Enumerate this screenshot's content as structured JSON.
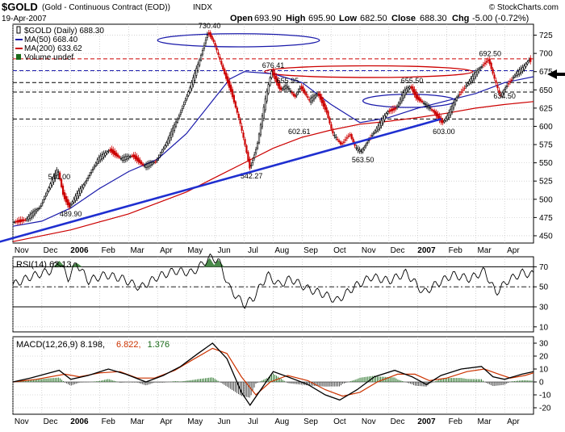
{
  "header": {
    "symbol": "$GOLD",
    "description": "(Gold - Continuous Contract (EOD))",
    "exchange": "INDX",
    "date": "19-Apr-2007",
    "copyright": "© StockCharts.com",
    "ohlc": {
      "open_label": "Open",
      "open": "693.90",
      "high_label": "High",
      "high": "695.90",
      "low_label": "Low",
      "low": "682.50",
      "close_label": "Close",
      "close": "688.30",
      "chg_label": "Chg",
      "chg": "-5.00 (-0.72%)"
    }
  },
  "colors": {
    "price_up": "#000000",
    "price_down": "#cc0000",
    "ma50": "#1a1aaa",
    "ma200": "#cc0000",
    "trendline": "#1f2fd0",
    "grid": "#b8b8b8",
    "macd_line": "#000000",
    "signal_line": "#cc3300",
    "histogram": "#1a6a1a",
    "rsi_line": "#000000",
    "rsi_overbought_fill": "#4a8a4a"
  },
  "chart_data": [
    {
      "type": "line",
      "name": "price",
      "title": "$GOLD (Daily) 688.30",
      "legend": [
        {
          "label": "$GOLD (Daily) 688.30",
          "marker": "candle",
          "color": "#000000"
        },
        {
          "label": "MA(50) 668.40",
          "marker": "line",
          "color": "#1a1aaa"
        },
        {
          "label": "MA(200) 633.62",
          "marker": "line",
          "color": "#cc0000"
        },
        {
          "label": "Volume undef",
          "marker": "bar",
          "color": "#1a6a1a"
        }
      ],
      "legend_position": "top-left",
      "ylim": [
        440,
        740
      ],
      "y_ticks": [
        450,
        475,
        500,
        525,
        550,
        575,
        600,
        625,
        650,
        675,
        700,
        725
      ],
      "x_range": [
        0,
        18
      ],
      "x_ticks": [
        {
          "x": 0.3,
          "label": "Nov",
          "bold": false
        },
        {
          "x": 1.3,
          "label": "Dec",
          "bold": false
        },
        {
          "x": 2.3,
          "label": "2006",
          "bold": true
        },
        {
          "x": 3.3,
          "label": "Feb",
          "bold": false
        },
        {
          "x": 4.3,
          "label": "Mar",
          "bold": false
        },
        {
          "x": 5.3,
          "label": "Apr",
          "bold": false
        },
        {
          "x": 6.3,
          "label": "May",
          "bold": false
        },
        {
          "x": 7.3,
          "label": "Jun",
          "bold": false
        },
        {
          "x": 8.3,
          "label": "Jul",
          "bold": false
        },
        {
          "x": 9.3,
          "label": "Aug",
          "bold": false
        },
        {
          "x": 10.3,
          "label": "Sep",
          "bold": false
        },
        {
          "x": 11.3,
          "label": "Oct",
          "bold": false
        },
        {
          "x": 12.3,
          "label": "Nov",
          "bold": false
        },
        {
          "x": 13.3,
          "label": "Dec",
          "bold": false
        },
        {
          "x": 14.3,
          "label": "2007",
          "bold": true
        },
        {
          "x": 15.3,
          "label": "Feb",
          "bold": false
        },
        {
          "x": 16.3,
          "label": "Mar",
          "bold": false
        },
        {
          "x": 17.3,
          "label": "Apr",
          "bold": false
        }
      ],
      "price_path": [
        [
          0,
          468
        ],
        [
          0.5,
          472
        ],
        [
          1,
          490
        ],
        [
          1.4,
          525
        ],
        [
          1.6,
          541
        ],
        [
          1.8,
          505
        ],
        [
          2,
          490
        ],
        [
          2.5,
          520
        ],
        [
          3,
          555
        ],
        [
          3.4,
          568
        ],
        [
          3.8,
          555
        ],
        [
          4.2,
          560
        ],
        [
          4.6,
          545
        ],
        [
          5,
          552
        ],
        [
          5.4,
          580
        ],
        [
          5.8,
          615
        ],
        [
          6.2,
          655
        ],
        [
          6.5,
          690
        ],
        [
          6.8,
          730
        ],
        [
          7.0,
          715
        ],
        [
          7.3,
          680
        ],
        [
          7.6,
          648
        ],
        [
          7.9,
          605
        ],
        [
          8.1,
          570
        ],
        [
          8.25,
          542
        ],
        [
          8.5,
          575
        ],
        [
          8.8,
          640
        ],
        [
          9.0,
          676
        ],
        [
          9.3,
          650
        ],
        [
          9.5,
          655
        ],
        [
          9.8,
          640
        ],
        [
          10.0,
          655
        ],
        [
          10.3,
          635
        ],
        [
          10.6,
          645
        ],
        [
          10.9,
          620
        ],
        [
          11.1,
          590
        ],
        [
          11.4,
          575
        ],
        [
          11.7,
          590
        ],
        [
          11.9,
          570
        ],
        [
          12.1,
          565
        ],
        [
          12.4,
          585
        ],
        [
          12.7,
          600
        ],
        [
          13.0,
          620
        ],
        [
          13.3,
          625
        ],
        [
          13.6,
          648
        ],
        [
          13.8,
          655
        ],
        [
          14.0,
          640
        ],
        [
          14.3,
          630
        ],
        [
          14.6,
          620
        ],
        [
          14.9,
          605
        ],
        [
          15.1,
          615
        ],
        [
          15.4,
          640
        ],
        [
          15.8,
          660
        ],
        [
          16.2,
          680
        ],
        [
          16.5,
          692
        ],
        [
          16.7,
          665
        ],
        [
          16.9,
          640
        ],
        [
          17.1,
          655
        ],
        [
          17.4,
          670
        ],
        [
          17.7,
          680
        ],
        [
          17.9,
          692
        ],
        [
          18.0,
          688
        ]
      ],
      "ma50": [
        [
          0,
          463
        ],
        [
          1,
          470
        ],
        [
          2,
          488
        ],
        [
          3,
          515
        ],
        [
          4,
          538
        ],
        [
          5,
          555
        ],
        [
          6,
          590
        ],
        [
          7,
          640
        ],
        [
          7.5,
          665
        ],
        [
          8,
          675
        ],
        [
          9,
          672
        ],
        [
          10,
          660
        ],
        [
          11,
          630
        ],
        [
          12,
          605
        ],
        [
          13,
          612
        ],
        [
          14,
          625
        ],
        [
          15,
          635
        ],
        [
          16,
          645
        ],
        [
          17,
          660
        ],
        [
          18,
          668
        ]
      ],
      "ma200": [
        [
          0,
          442
        ],
        [
          2,
          458
        ],
        [
          4,
          480
        ],
        [
          6,
          510
        ],
        [
          7,
          530
        ],
        [
          8,
          550
        ],
        [
          9,
          570
        ],
        [
          10,
          585
        ],
        [
          11,
          595
        ],
        [
          12,
          603
        ],
        [
          13,
          607
        ],
        [
          14,
          612
        ],
        [
          15,
          618
        ],
        [
          16,
          625
        ],
        [
          17,
          630
        ],
        [
          18,
          634
        ]
      ],
      "trendline": [
        [
          -0.5,
          443
        ],
        [
          14.8,
          610
        ]
      ],
      "horizontal_lines": [
        {
          "y": 692.5,
          "style": "dashed",
          "color": "#cc0000"
        },
        {
          "y": 676.4,
          "style": "dashed",
          "color": "#1a1aaa"
        },
        {
          "y": 660,
          "style": "dashed",
          "color": "#000000"
        },
        {
          "y": 647,
          "style": "dashed",
          "color": "#000000"
        },
        {
          "y": 610,
          "style": "dashed",
          "color": "#000000"
        }
      ],
      "ellipses": [
        {
          "cx": 7.8,
          "cy": 718,
          "rx": 2.8,
          "ry": 9,
          "color": "#1a1aaa"
        },
        {
          "cx": 12.3,
          "cy": 675,
          "rx": 3.6,
          "ry": 8,
          "color": "#cc0000"
        },
        {
          "cx": 13.7,
          "cy": 635,
          "rx": 1.6,
          "ry": 9,
          "color": "#1a1aaa"
        }
      ],
      "annotations": [
        {
          "label": "730.40",
          "x": 6.8,
          "y": 730
        },
        {
          "label": "676.41",
          "x": 9.0,
          "y": 676
        },
        {
          "label": "655.95",
          "x": 9.5,
          "y": 655
        },
        {
          "label": "655.50",
          "x": 13.8,
          "y": 655
        },
        {
          "label": "692.50",
          "x": 16.5,
          "y": 692
        },
        {
          "label": "541.00",
          "x": 1.6,
          "y": 541
        },
        {
          "label": "489.90",
          "x": 2.0,
          "y": 490
        },
        {
          "label": "542.27",
          "x": 8.25,
          "y": 542
        },
        {
          "label": "602.61",
          "x": 9.9,
          "y": 603
        },
        {
          "label": "563.50",
          "x": 12.1,
          "y": 564
        },
        {
          "label": "603.00",
          "x": 14.9,
          "y": 603
        },
        {
          "label": "634.50",
          "x": 17.0,
          "y": 634
        }
      ]
    },
    {
      "type": "line",
      "name": "rsi",
      "title": "RSI(14) 62.13",
      "ylim": [
        5,
        80
      ],
      "y_ticks": [
        10,
        30,
        50,
        70
      ],
      "reference_lines": [
        70,
        50,
        30
      ],
      "overbought_peaks": [
        [
          1.6,
          76
        ],
        [
          2.2,
          74
        ],
        [
          6.8,
          79
        ],
        [
          7.1,
          77
        ]
      ],
      "values": [
        [
          0,
          52
        ],
        [
          0.6,
          60
        ],
        [
          1.3,
          66
        ],
        [
          1.6,
          76
        ],
        [
          1.9,
          58
        ],
        [
          2.2,
          74
        ],
        [
          2.6,
          56
        ],
        [
          3.2,
          62
        ],
        [
          3.8,
          58
        ],
        [
          4.4,
          49
        ],
        [
          5,
          60
        ],
        [
          5.6,
          66
        ],
        [
          6.2,
          64
        ],
        [
          6.8,
          79
        ],
        [
          7.1,
          77
        ],
        [
          7.5,
          48
        ],
        [
          8.0,
          32
        ],
        [
          8.3,
          38
        ],
        [
          8.8,
          62
        ],
        [
          9.2,
          52
        ],
        [
          9.6,
          58
        ],
        [
          10.2,
          48
        ],
        [
          10.8,
          42
        ],
        [
          11.2,
          36
        ],
        [
          11.8,
          50
        ],
        [
          12.4,
          60
        ],
        [
          13.0,
          56
        ],
        [
          13.6,
          64
        ],
        [
          14.2,
          44
        ],
        [
          14.6,
          52
        ],
        [
          15.2,
          62
        ],
        [
          15.8,
          58
        ],
        [
          16.3,
          66
        ],
        [
          16.7,
          44
        ],
        [
          17.1,
          56
        ],
        [
          17.6,
          64
        ],
        [
          18.0,
          62
        ]
      ]
    },
    {
      "type": "line",
      "name": "macd",
      "title": "MACD(12,26,9) 8.198, 6.822, 1.376",
      "legend": [
        {
          "label": "MACD(12,26,9) 8.198",
          "color": "#000000"
        },
        {
          "label": "6.822",
          "color": "#cc3300"
        },
        {
          "label": "1.376",
          "color": "#1a6a1a"
        }
      ],
      "ylim": [
        -25,
        35
      ],
      "y_ticks": [
        -20,
        -10,
        0,
        10,
        20,
        30
      ],
      "macd": [
        [
          0,
          0
        ],
        [
          0.6,
          3
        ],
        [
          1.6,
          9
        ],
        [
          2.0,
          2
        ],
        [
          2.6,
          5
        ],
        [
          3.3,
          10
        ],
        [
          3.9,
          6
        ],
        [
          4.6,
          0
        ],
        [
          5.2,
          5
        ],
        [
          5.8,
          12
        ],
        [
          6.4,
          22
        ],
        [
          6.9,
          30
        ],
        [
          7.4,
          18
        ],
        [
          7.9,
          -8
        ],
        [
          8.2,
          -18
        ],
        [
          8.6,
          -5
        ],
        [
          9.0,
          8
        ],
        [
          9.5,
          4
        ],
        [
          10.2,
          -2
        ],
        [
          10.8,
          -10
        ],
        [
          11.3,
          -14
        ],
        [
          11.9,
          -6
        ],
        [
          12.5,
          4
        ],
        [
          13.2,
          9
        ],
        [
          13.8,
          4
        ],
        [
          14.3,
          -2
        ],
        [
          14.8,
          5
        ],
        [
          15.5,
          10
        ],
        [
          16.2,
          12
        ],
        [
          16.6,
          4
        ],
        [
          17.0,
          2
        ],
        [
          17.6,
          6
        ],
        [
          18.0,
          8
        ]
      ],
      "signal": [
        [
          0,
          0
        ],
        [
          0.8,
          2
        ],
        [
          1.8,
          6
        ],
        [
          2.3,
          4
        ],
        [
          3.0,
          7
        ],
        [
          3.7,
          8
        ],
        [
          4.3,
          3
        ],
        [
          4.9,
          3
        ],
        [
          5.6,
          9
        ],
        [
          6.2,
          17
        ],
        [
          6.9,
          26
        ],
        [
          7.4,
          22
        ],
        [
          7.9,
          4
        ],
        [
          8.4,
          -10
        ],
        [
          8.9,
          0
        ],
        [
          9.5,
          5
        ],
        [
          10.2,
          1
        ],
        [
          10.8,
          -6
        ],
        [
          11.4,
          -11
        ],
        [
          12.0,
          -8
        ],
        [
          12.6,
          0
        ],
        [
          13.3,
          6
        ],
        [
          13.9,
          6
        ],
        [
          14.4,
          1
        ],
        [
          15.0,
          3
        ],
        [
          15.7,
          8
        ],
        [
          16.3,
          10
        ],
        [
          16.8,
          6
        ],
        [
          17.2,
          3
        ],
        [
          17.7,
          5
        ],
        [
          18.0,
          7
        ]
      ],
      "histogram_summary": "histogram bars oscillate around zero, roughly MACD minus signal"
    }
  ],
  "right_arrow": "arrow pointing left at the current price level"
}
